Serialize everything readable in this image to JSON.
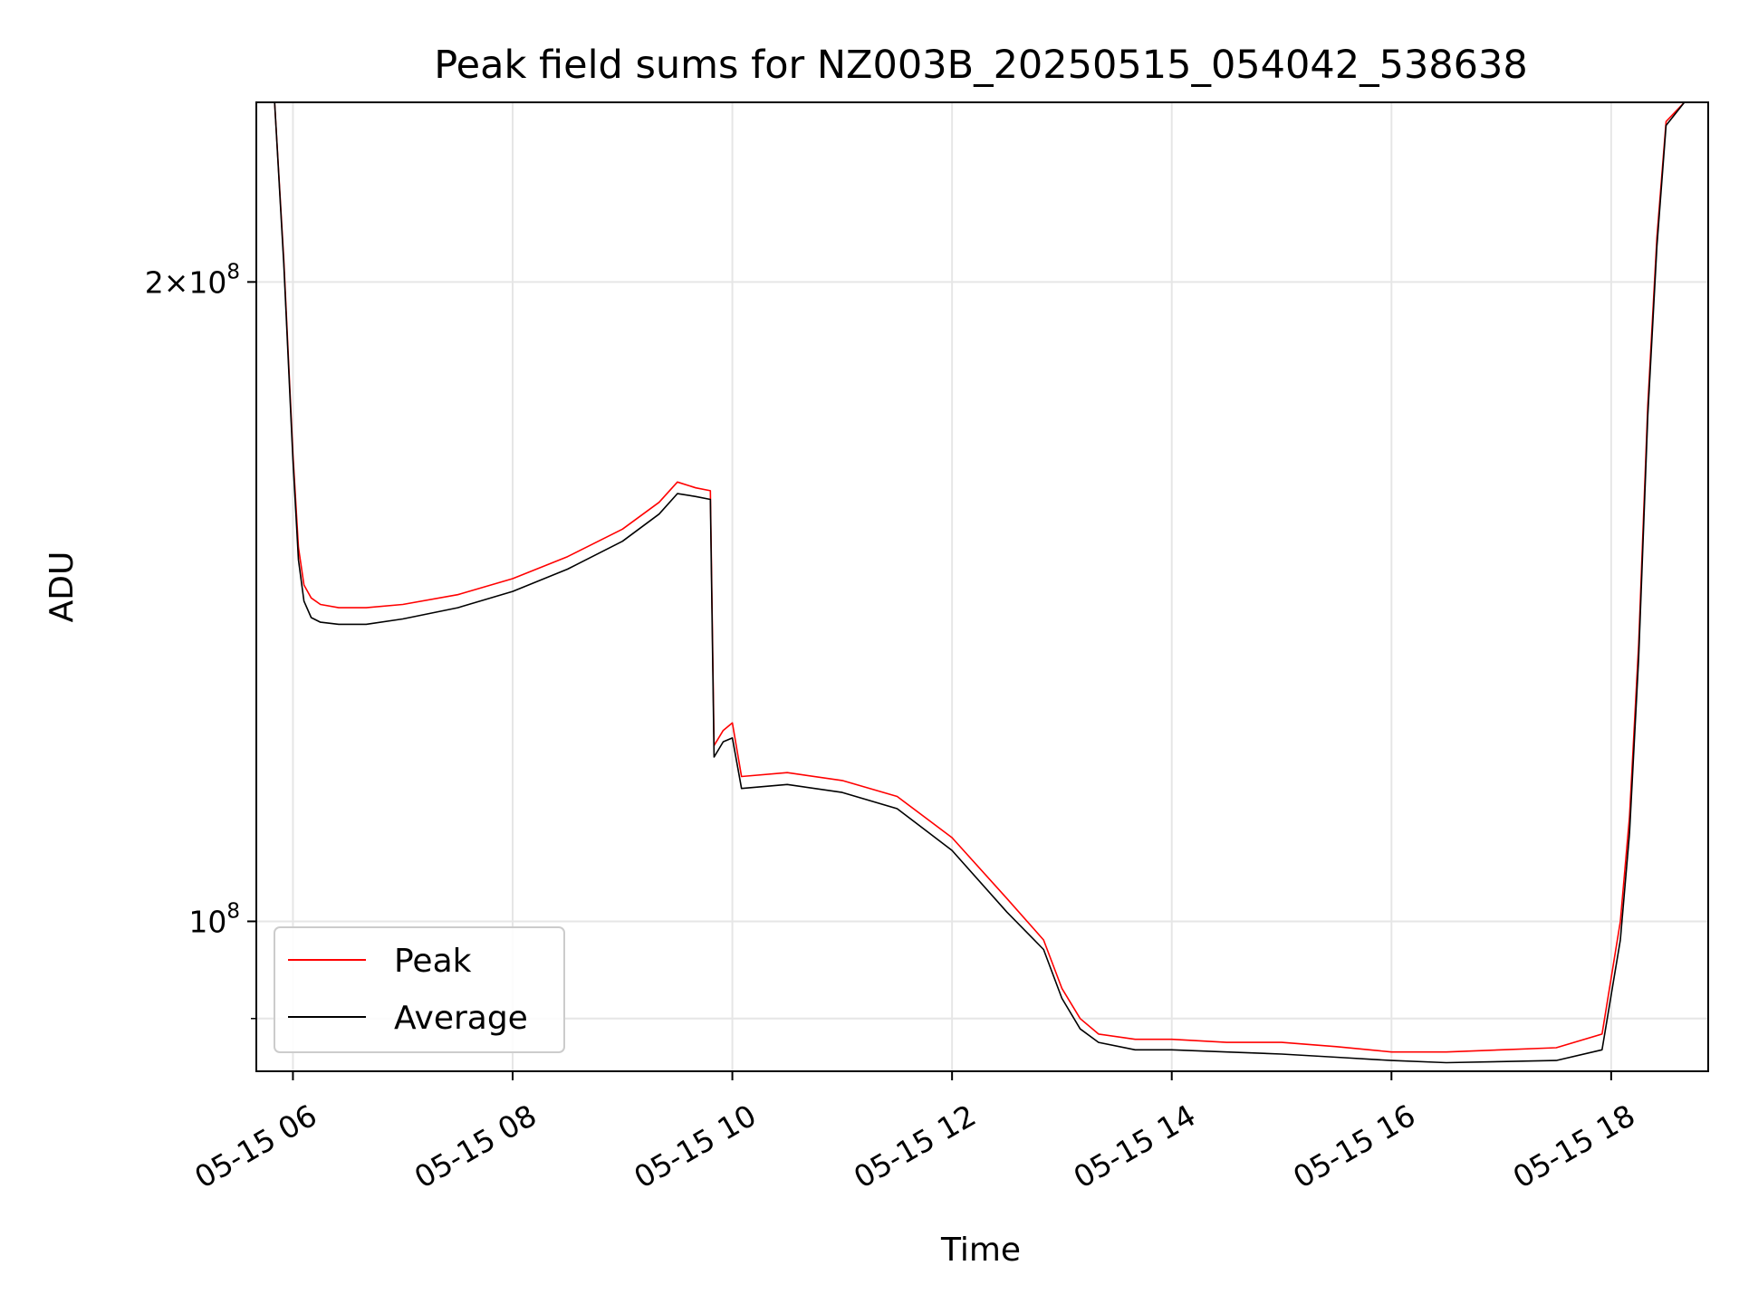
{
  "chart_data": {
    "type": "line",
    "title": "Peak field sums for NZ003B_20250515_054042_538638",
    "xlabel": "Time",
    "ylabel": "ADU",
    "y_scale": "log",
    "grid": true,
    "legend_position": "lower-left",
    "xlim": [
      "2025-05-15 05:40",
      "2025-05-15 18:53"
    ],
    "ylim": [
      85000000,
      243000000
    ],
    "x_ticks": [
      {
        "value": "2025-05-15 06:00",
        "label": "05-15 06"
      },
      {
        "value": "2025-05-15 08:00",
        "label": "05-15 08"
      },
      {
        "value": "2025-05-15 10:00",
        "label": "05-15 10"
      },
      {
        "value": "2025-05-15 12:00",
        "label": "05-15 12"
      },
      {
        "value": "2025-05-15 14:00",
        "label": "05-15 14"
      },
      {
        "value": "2025-05-15 16:00",
        "label": "05-15 16"
      },
      {
        "value": "2025-05-15 18:00",
        "label": "05-15 18"
      }
    ],
    "y_ticks": [
      {
        "value": 200000000,
        "mantissa": "2",
        "times": "×",
        "base": "10",
        "exp": "8"
      },
      {
        "value": 100000000,
        "mantissa": "",
        "times": "",
        "base": "10",
        "exp": "8"
      }
    ],
    "y_minor_ticks": [
      90000000
    ],
    "series": [
      {
        "name": "Peak",
        "color": "#ff0000",
        "x": [
          "2025-05-15 05:40",
          "2025-05-15 05:50",
          "2025-05-15 05:55",
          "2025-05-15 06:00",
          "2025-05-15 06:03",
          "2025-05-15 06:06",
          "2025-05-15 06:10",
          "2025-05-15 06:15",
          "2025-05-15 06:25",
          "2025-05-15 06:40",
          "2025-05-15 07:00",
          "2025-05-15 07:30",
          "2025-05-15 08:00",
          "2025-05-15 08:30",
          "2025-05-15 09:00",
          "2025-05-15 09:20",
          "2025-05-15 09:30",
          "2025-05-15 09:40",
          "2025-05-15 09:48",
          "2025-05-15 09:50",
          "2025-05-15 09:55",
          "2025-05-15 10:00",
          "2025-05-15 10:05",
          "2025-05-15 10:30",
          "2025-05-15 11:00",
          "2025-05-15 11:30",
          "2025-05-15 12:00",
          "2025-05-15 12:30",
          "2025-05-15 12:50",
          "2025-05-15 13:00",
          "2025-05-15 13:10",
          "2025-05-15 13:20",
          "2025-05-15 13:40",
          "2025-05-15 14:00",
          "2025-05-15 14:30",
          "2025-05-15 15:00",
          "2025-05-15 15:30",
          "2025-05-15 16:00",
          "2025-05-15 16:30",
          "2025-05-15 17:00",
          "2025-05-15 17:30",
          "2025-05-15 17:55",
          "2025-05-15 18:05",
          "2025-05-15 18:10",
          "2025-05-15 18:15",
          "2025-05-15 18:20",
          "2025-05-15 18:25",
          "2025-05-15 18:30",
          "2025-05-15 18:40",
          "2025-05-15 18:53"
        ],
        "values": [
          243000000,
          243000000,
          205000000,
          166000000,
          150000000,
          144000000,
          142000000,
          141000000,
          140500000,
          140500000,
          141000000,
          142500000,
          145000000,
          148500000,
          153000000,
          157500000,
          161000000,
          160000000,
          159500000,
          121000000,
          123000000,
          124000000,
          117000000,
          117500000,
          116500000,
          114500000,
          109500000,
          102500000,
          98000000,
          93000000,
          90000000,
          88500000,
          88000000,
          88000000,
          87700000,
          87700000,
          87300000,
          86800000,
          86800000,
          87000000,
          87200000,
          88500000,
          100000000,
          112000000,
          135000000,
          175000000,
          210000000,
          238000000,
          243000000,
          243000000
        ]
      },
      {
        "name": "Average",
        "color": "#000000",
        "x": [
          "2025-05-15 05:40",
          "2025-05-15 05:50",
          "2025-05-15 05:55",
          "2025-05-15 06:00",
          "2025-05-15 06:03",
          "2025-05-15 06:06",
          "2025-05-15 06:10",
          "2025-05-15 06:15",
          "2025-05-15 06:25",
          "2025-05-15 06:40",
          "2025-05-15 07:00",
          "2025-05-15 07:30",
          "2025-05-15 08:00",
          "2025-05-15 08:30",
          "2025-05-15 09:00",
          "2025-05-15 09:20",
          "2025-05-15 09:30",
          "2025-05-15 09:40",
          "2025-05-15 09:48",
          "2025-05-15 09:50",
          "2025-05-15 09:55",
          "2025-05-15 10:00",
          "2025-05-15 10:05",
          "2025-05-15 10:30",
          "2025-05-15 11:00",
          "2025-05-15 11:30",
          "2025-05-15 12:00",
          "2025-05-15 12:30",
          "2025-05-15 12:50",
          "2025-05-15 13:00",
          "2025-05-15 13:10",
          "2025-05-15 13:20",
          "2025-05-15 13:40",
          "2025-05-15 14:00",
          "2025-05-15 14:30",
          "2025-05-15 15:00",
          "2025-05-15 15:30",
          "2025-05-15 16:00",
          "2025-05-15 16:30",
          "2025-05-15 17:00",
          "2025-05-15 17:30",
          "2025-05-15 17:55",
          "2025-05-15 18:05",
          "2025-05-15 18:10",
          "2025-05-15 18:15",
          "2025-05-15 18:20",
          "2025-05-15 18:25",
          "2025-05-15 18:30",
          "2025-05-15 18:40",
          "2025-05-15 18:53"
        ],
        "values": [
          243000000,
          243000000,
          204000000,
          165000000,
          148000000,
          141500000,
          139000000,
          138300000,
          138000000,
          138000000,
          138800000,
          140500000,
          143000000,
          146500000,
          151000000,
          155500000,
          159000000,
          158500000,
          158000000,
          119500000,
          121500000,
          122000000,
          115500000,
          116000000,
          115000000,
          113000000,
          108000000,
          101000000,
          97000000,
          92000000,
          89000000,
          87700000,
          87000000,
          87000000,
          86800000,
          86600000,
          86300000,
          86000000,
          85800000,
          85900000,
          86000000,
          87000000,
          98000000,
          110000000,
          133000000,
          173000000,
          208000000,
          237000000,
          243000000,
          243000000
        ]
      }
    ]
  }
}
